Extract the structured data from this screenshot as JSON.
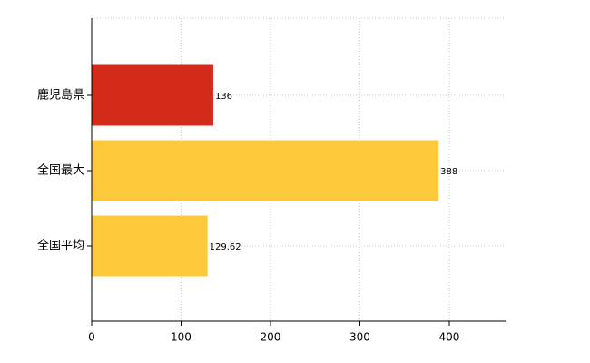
{
  "chart_data": {
    "type": "bar",
    "orientation": "horizontal",
    "categories": [
      "鹿児島県",
      "全国最大",
      "全国平均"
    ],
    "values": [
      136,
      388,
      129.62
    ],
    "colors": [
      "#d42a1a",
      "#fcc93a",
      "#fcc93a"
    ],
    "xlim": [
      0,
      464
    ],
    "xticks": [
      0,
      100,
      200,
      300,
      400
    ],
    "grid": true
  }
}
